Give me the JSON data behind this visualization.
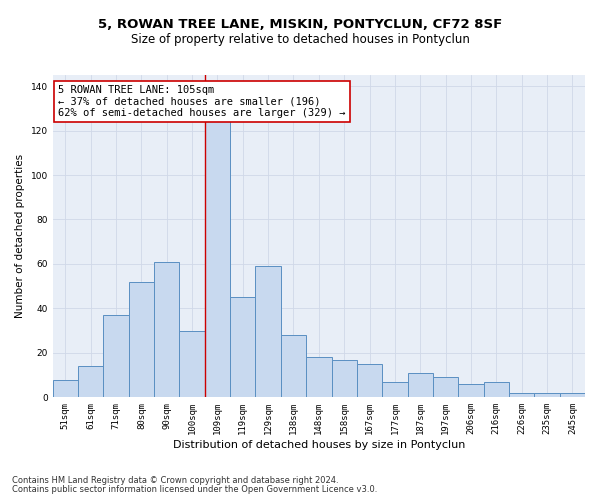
{
  "title": "5, ROWAN TREE LANE, MISKIN, PONTYCLUN, CF72 8SF",
  "subtitle": "Size of property relative to detached houses in Pontyclun",
  "xlabel": "Distribution of detached houses by size in Pontyclun",
  "ylabel": "Number of detached properties",
  "categories": [
    "51sqm",
    "61sqm",
    "71sqm",
    "80sqm",
    "90sqm",
    "100sqm",
    "109sqm",
    "119sqm",
    "129sqm",
    "138sqm",
    "148sqm",
    "158sqm",
    "167sqm",
    "177sqm",
    "187sqm",
    "197sqm",
    "206sqm",
    "216sqm",
    "226sqm",
    "235sqm",
    "245sqm"
  ],
  "values": [
    8,
    14,
    37,
    52,
    61,
    30,
    125,
    45,
    59,
    28,
    18,
    17,
    15,
    7,
    11,
    9,
    6,
    7,
    2,
    2,
    2
  ],
  "bar_color": "#c8d9ef",
  "bar_edge_color": "#5a8fc2",
  "bar_edge_width": 0.7,
  "vline_x": 5.5,
  "vline_color": "#cc0000",
  "annotation_text": "5 ROWAN TREE LANE: 105sqm\n← 37% of detached houses are smaller (196)\n62% of semi-detached houses are larger (329) →",
  "annotation_box_color": "#ffffff",
  "annotation_box_edge_color": "#cc0000",
  "ylim": [
    0,
    145
  ],
  "yticks": [
    0,
    20,
    40,
    60,
    80,
    100,
    120,
    140
  ],
  "grid_color": "#d0d8e8",
  "bg_color": "#e8eef7",
  "footnote1": "Contains HM Land Registry data © Crown copyright and database right 2024.",
  "footnote2": "Contains public sector information licensed under the Open Government Licence v3.0.",
  "title_fontsize": 9.5,
  "subtitle_fontsize": 8.5,
  "xlabel_fontsize": 8,
  "ylabel_fontsize": 7.5,
  "tick_fontsize": 6.5,
  "footnote_fontsize": 6,
  "annotation_fontsize": 7.5
}
